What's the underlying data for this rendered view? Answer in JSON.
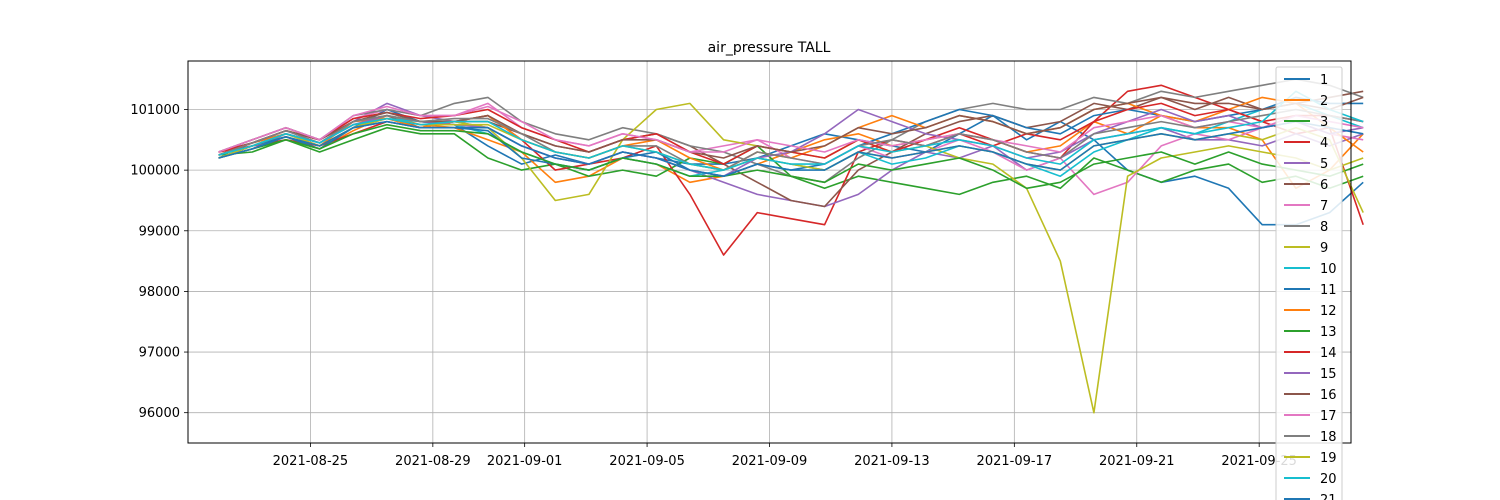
{
  "chart_data": {
    "type": "line",
    "title": "air_pressure TALL",
    "xlabel": "",
    "ylabel": "",
    "x_range": [
      "2021-08-21",
      "2021-09-28"
    ],
    "ylim": [
      95500,
      101800
    ],
    "grid": true,
    "legend_position": "right",
    "x_ticks": [
      "2021-08-25",
      "2021-08-29",
      "2021-09-01",
      "2021-09-05",
      "2021-09-09",
      "2021-09-13",
      "2021-09-17",
      "2021-09-21",
      "2021-09-25"
    ],
    "y_ticks": [
      96000,
      97000,
      98000,
      99000,
      100000,
      101000
    ],
    "series": [
      {
        "name": "1",
        "color": "#1f77b4",
        "values": [
          100300,
          100450,
          100600,
          100400,
          100700,
          101000,
          100800,
          100750,
          100400,
          100100,
          100250,
          100100,
          100300,
          100200,
          100100,
          100100,
          100200,
          100400,
          100600,
          100500,
          100400,
          100300,
          100600,
          100900,
          100500,
          100800,
          100500,
          100000,
          99800,
          99900,
          99700,
          99100,
          99100,
          99300,
          99800
        ]
      },
      {
        "name": "2",
        "color": "#ff7f0e",
        "values": [
          100200,
          100400,
          100550,
          100350,
          100650,
          100900,
          100750,
          100700,
          100500,
          100300,
          99800,
          99900,
          100200,
          100100,
          99800,
          99900,
          100100,
          100300,
          100500,
          100600,
          100400,
          100500,
          100600,
          100500,
          100300,
          100400,
          100800,
          100600,
          100900,
          100700,
          100700,
          100500,
          99700,
          100000,
          100600
        ]
      },
      {
        "name": "3",
        "color": "#2ca02c",
        "values": [
          100250,
          100300,
          100500,
          100300,
          100500,
          100700,
          100600,
          100600,
          100200,
          100000,
          100100,
          99900,
          100000,
          99900,
          100200,
          100100,
          100400,
          99900,
          99700,
          99900,
          99800,
          99700,
          99600,
          99800,
          99900,
          99700,
          100200,
          100000,
          99800,
          100000,
          100100,
          99800,
          99900,
          99700,
          99900
        ]
      },
      {
        "name": "4",
        "color": "#d62728",
        "values": [
          100300,
          100400,
          100500,
          100400,
          100600,
          100800,
          100700,
          100800,
          100900,
          100500,
          100000,
          100100,
          100200,
          100400,
          99600,
          98600,
          99300,
          99200,
          99100,
          100300,
          100500,
          100400,
          100600,
          100400,
          100600,
          100500,
          100800,
          101300,
          101400,
          101200,
          101000,
          100800,
          100600,
          100700,
          99100
        ]
      },
      {
        "name": "5",
        "color": "#9467bd",
        "values": [
          100200,
          100350,
          100600,
          100450,
          100800,
          101100,
          100900,
          100800,
          100700,
          100400,
          100200,
          100100,
          100300,
          100200,
          100000,
          99800,
          99600,
          99500,
          99400,
          99600,
          100000,
          100300,
          100200,
          100400,
          100000,
          100200,
          100500,
          100600,
          100700,
          100500,
          100500,
          100400,
          100600,
          100400,
          100600
        ]
      },
      {
        "name": "6",
        "color": "#8c564b",
        "values": [
          100300,
          100500,
          100700,
          100500,
          100800,
          100900,
          100700,
          100800,
          100800,
          100600,
          100400,
          100300,
          100500,
          100600,
          100400,
          100100,
          99800,
          99500,
          99400,
          100000,
          100300,
          100600,
          100800,
          100900,
          100700,
          100800,
          101100,
          101000,
          101200,
          101000,
          101200,
          101000,
          101100,
          101200,
          101300
        ]
      },
      {
        "name": "7",
        "color": "#e377c2",
        "values": [
          100250,
          100450,
          100650,
          100500,
          100850,
          101000,
          100900,
          100900,
          101100,
          100700,
          100500,
          100400,
          100600,
          100500,
          100300,
          100400,
          100500,
          100200,
          100100,
          100400,
          100200,
          100300,
          100500,
          100300,
          100000,
          100200,
          99600,
          99800,
          100400,
          100600,
          100500,
          100700,
          100800,
          100600,
          100500
        ]
      },
      {
        "name": "8",
        "color": "#7f7f7f",
        "values": [
          100300,
          100500,
          100700,
          100500,
          100900,
          101000,
          100900,
          101100,
          101200,
          100800,
          100600,
          100500,
          100700,
          100600,
          100400,
          100300,
          100100,
          99900,
          99800,
          100200,
          100500,
          100800,
          101000,
          101100,
          101000,
          101000,
          101200,
          101100,
          101300,
          101200,
          101300,
          101400,
          101500,
          101400,
          101200
        ]
      },
      {
        "name": "9",
        "color": "#bcbd22",
        "values": [
          100200,
          100400,
          100550,
          100400,
          100700,
          100900,
          100800,
          100800,
          100700,
          100200,
          99500,
          99600,
          100500,
          101000,
          101100,
          100500,
          100400,
          100300,
          100200,
          100500,
          100300,
          100400,
          100200,
          100100,
          99700,
          98500,
          96000,
          99900,
          100200,
          100300,
          100400,
          100300,
          100200,
          100000,
          100200
        ]
      },
      {
        "name": "10",
        "color": "#17becf",
        "values": [
          100250,
          100400,
          100600,
          100450,
          100750,
          100850,
          100800,
          100750,
          100600,
          100300,
          100100,
          100000,
          100200,
          100100,
          99900,
          100000,
          100200,
          100100,
          100000,
          100300,
          100100,
          100200,
          100400,
          100300,
          100100,
          99900,
          100300,
          100500,
          100700,
          100600,
          100800,
          101000,
          101100,
          100900,
          100700
        ]
      },
      {
        "name": "11",
        "color": "#1f77b4",
        "values": [
          100200,
          100400,
          100550,
          100350,
          100700,
          100800,
          100700,
          100700,
          100650,
          100200,
          100100,
          100000,
          100200,
          100300,
          100000,
          99900,
          100100,
          100000,
          100100,
          100400,
          100600,
          100800,
          101000,
          100900,
          100700,
          100600,
          100900,
          101000,
          100900,
          100800,
          100900,
          101000,
          101200,
          101100,
          101100
        ]
      },
      {
        "name": "12",
        "color": "#ff7f0e",
        "values": [
          100250,
          100450,
          100600,
          100400,
          100800,
          100850,
          100700,
          100800,
          100900,
          100500,
          100300,
          100200,
          100400,
          100500,
          100200,
          100000,
          100300,
          100200,
          100400,
          100700,
          100900,
          100700,
          100900,
          100800,
          100600,
          100700,
          101000,
          101100,
          100900,
          100800,
          101000,
          101200,
          101100,
          100700,
          100300
        ]
      },
      {
        "name": "13",
        "color": "#2ca02c",
        "values": [
          100200,
          100350,
          100500,
          100350,
          100600,
          100750,
          100650,
          100650,
          100600,
          100300,
          100100,
          100000,
          100200,
          100100,
          99900,
          99900,
          100000,
          99900,
          99800,
          100100,
          100000,
          100100,
          100200,
          100000,
          99700,
          99800,
          100100,
          100200,
          100300,
          100100,
          100300,
          100100,
          100000,
          99900,
          100100
        ]
      },
      {
        "name": "14",
        "color": "#d62728",
        "values": [
          100300,
          100450,
          100650,
          100500,
          100850,
          100950,
          100850,
          100900,
          101000,
          100700,
          100500,
          100300,
          100500,
          100600,
          100300,
          100100,
          100400,
          100300,
          100200,
          100500,
          100300,
          100500,
          100700,
          100500,
          100300,
          100200,
          100800,
          101000,
          101100,
          100900,
          101000,
          100800,
          100900,
          100900,
          100800
        ]
      },
      {
        "name": "15",
        "color": "#9467bd",
        "values": [
          100200,
          100400,
          100600,
          100450,
          100750,
          100900,
          100800,
          100750,
          100700,
          100400,
          100200,
          100100,
          100300,
          100200,
          100000,
          99900,
          100200,
          100300,
          100600,
          101000,
          100800,
          100600,
          100500,
          100400,
          100200,
          100300,
          100600,
          100800,
          101000,
          100800,
          100900,
          100700,
          100800,
          100600,
          100700
        ]
      },
      {
        "name": "16",
        "color": "#8c564b",
        "values": [
          100250,
          100450,
          100650,
          100500,
          100800,
          100950,
          100800,
          100800,
          100900,
          100600,
          100400,
          100300,
          100500,
          100500,
          100300,
          100200,
          100400,
          100300,
          100400,
          100700,
          100600,
          100700,
          100900,
          100800,
          100600,
          100700,
          101000,
          101100,
          101200,
          101100,
          101100,
          101000,
          101100,
          101000,
          101200
        ]
      },
      {
        "name": "17",
        "color": "#e377c2",
        "values": [
          100300,
          100500,
          100700,
          100500,
          100900,
          101050,
          100900,
          100900,
          101050,
          100800,
          100500,
          100400,
          100600,
          100500,
          100300,
          100300,
          100500,
          100400,
          100300,
          100500,
          100400,
          100500,
          100600,
          100500,
          100400,
          100300,
          100700,
          100800,
          100900,
          100700,
          100800,
          100700,
          100900,
          100800,
          100700
        ]
      },
      {
        "name": "18",
        "color": "#7f7f7f",
        "values": [
          100250,
          100450,
          100650,
          100450,
          100800,
          100900,
          100800,
          100850,
          100850,
          100600,
          100300,
          100200,
          100400,
          100400,
          100100,
          100000,
          100300,
          100200,
          100100,
          100400,
          100500,
          100400,
          100600,
          100500,
          100300,
          100200,
          100600,
          100700,
          100800,
          100700,
          100800,
          100900,
          101000,
          100900,
          100800
        ]
      },
      {
        "name": "19",
        "color": "#bcbd22",
        "values": [
          100200,
          100400,
          100600,
          100400,
          100700,
          100850,
          100750,
          100750,
          100750,
          100500,
          100300,
          100200,
          100400,
          100300,
          100100,
          100000,
          100200,
          100100,
          100000,
          100300,
          100200,
          100300,
          100400,
          100300,
          100100,
          100000,
          100400,
          100500,
          100600,
          100500,
          100600,
          100500,
          100700,
          100500,
          99300
        ]
      },
      {
        "name": "20",
        "color": "#17becf",
        "values": [
          100250,
          100400,
          100600,
          100450,
          100750,
          100850,
          100750,
          100800,
          100800,
          100500,
          100300,
          100200,
          100400,
          100300,
          100100,
          100000,
          100200,
          100100,
          100100,
          100400,
          100300,
          100400,
          100500,
          100400,
          100200,
          100100,
          100500,
          100600,
          100700,
          100600,
          100700,
          100800,
          101300,
          101000,
          100800
        ]
      },
      {
        "name": "21",
        "color": "#1f77b4",
        "values": [
          100200,
          100350,
          100550,
          100400,
          100700,
          100800,
          100700,
          100700,
          100700,
          100400,
          100200,
          100100,
          100300,
          100200,
          100000,
          99900,
          100100,
          100000,
          100000,
          100300,
          100200,
          100300,
          100400,
          100300,
          100100,
          100000,
          100400,
          100500,
          100600,
          100500,
          100600,
          100700,
          100800,
          100700,
          100600
        ]
      }
    ],
    "x_start": "2021-08-22",
    "x_step_days": 1.1
  }
}
